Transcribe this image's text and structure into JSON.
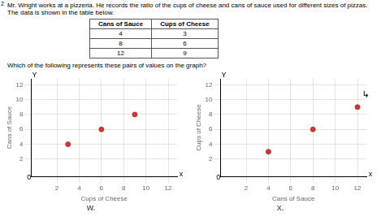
{
  "title": "Mr. Wright works at a pizzeria. He records the ratio of the cups of cheese and cans of sauce used for different sizes of pizzas.",
  "subtitle": "The data is shown in the table below.",
  "annotations": [
    "Which of the following represents these pairs of values on the graph?",
    "2",
    "↳"
  ],
  "chart_data": [
    {
      "type": "table",
      "columns": [
        "Cans of Sauce",
        "Cups of Cheese"
      ],
      "rows": [
        [
          4,
          3
        ],
        [
          8,
          6
        ],
        [
          12,
          9
        ]
      ]
    },
    {
      "type": "scatter",
      "title": "W.",
      "xlabel": "Cups of Cheese",
      "ylabel": "Cans of Sauce",
      "x": [
        3,
        6,
        9
      ],
      "values": [
        4,
        6,
        8
      ],
      "color": "#cc3333",
      "xlim": [
        -0.3,
        12.8
      ],
      "ylim": [
        -0.3,
        12.8
      ],
      "xticks": [
        2,
        4,
        6,
        8,
        10,
        12
      ],
      "yticks": [
        2,
        4,
        6,
        8,
        10,
        12
      ],
      "grid": true,
      "annotations": [
        {
          "text": "Y",
          "x": 0,
          "y": 12.85
        },
        {
          "text": "x",
          "x": 12.85,
          "y": 0
        },
        {
          "text": "0",
          "x": -0.5,
          "y": -0.5
        }
      ]
    },
    {
      "type": "scatter",
      "title": "X.",
      "xlabel": "Cans of Sauce",
      "ylabel": "Cups of Cheese",
      "x": [
        4,
        8,
        12
      ],
      "values": [
        3,
        6,
        9
      ],
      "color": "#cc3333",
      "xlim": [
        -0.3,
        12.8
      ],
      "ylim": [
        -0.3,
        12.8
      ],
      "xticks": [
        2,
        4,
        6,
        8,
        10,
        12
      ],
      "yticks": [
        2,
        4,
        6,
        8,
        10,
        12
      ],
      "grid": true,
      "annotations": [
        {
          "text": "Y",
          "x": 0,
          "y": 12.85
        },
        {
          "text": "x",
          "x": 12.85,
          "y": 0
        },
        {
          "text": "0",
          "x": -0.5,
          "y": -0.5
        }
      ]
    }
  ]
}
